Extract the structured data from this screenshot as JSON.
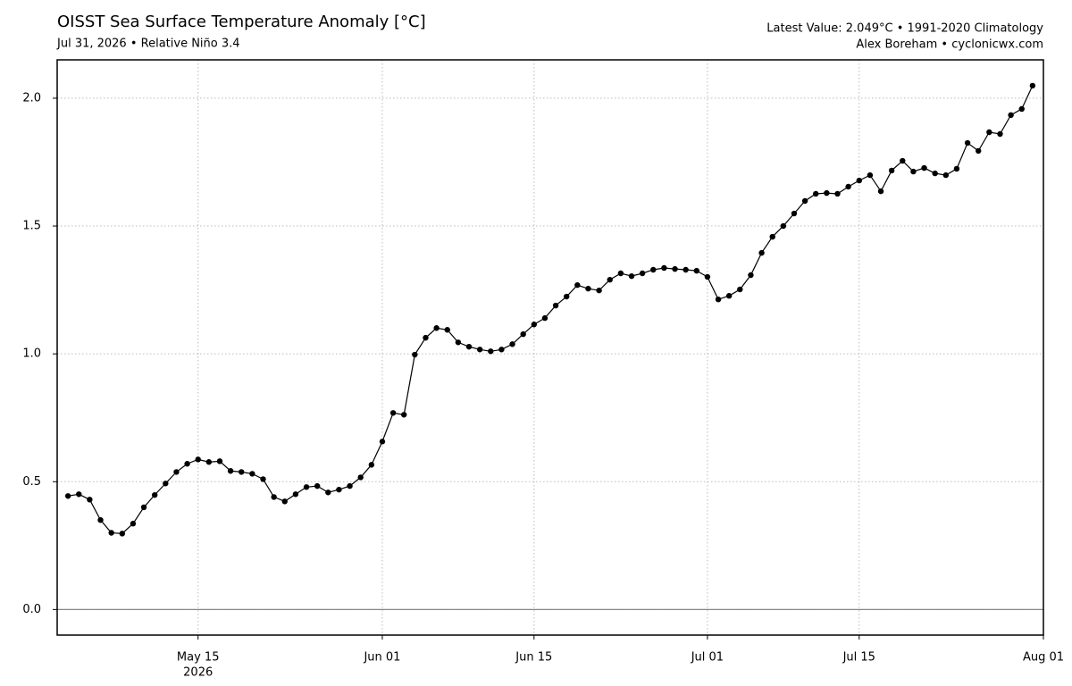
{
  "chart_data": {
    "type": "line",
    "title": "OISST Sea Surface Temperature Anomaly [°C]",
    "subtitle": "Jul 31, 2026 • Relative Niño 3.4",
    "annotations": [
      "Latest Value: 2.049°C • 1991-2020 Climatology",
      "Alex Boreham • cyclonicwx.com"
    ],
    "x": [
      "2026-05-03",
      "2026-05-04",
      "2026-05-05",
      "2026-05-06",
      "2026-05-07",
      "2026-05-08",
      "2026-05-09",
      "2026-05-10",
      "2026-05-11",
      "2026-05-12",
      "2026-05-13",
      "2026-05-14",
      "2026-05-15",
      "2026-05-16",
      "2026-05-17",
      "2026-05-18",
      "2026-05-19",
      "2026-05-20",
      "2026-05-21",
      "2026-05-22",
      "2026-05-23",
      "2026-05-24",
      "2026-05-25",
      "2026-05-26",
      "2026-05-27",
      "2026-05-28",
      "2026-05-29",
      "2026-05-30",
      "2026-05-31",
      "2026-06-01",
      "2026-06-02",
      "2026-06-03",
      "2026-06-04",
      "2026-06-05",
      "2026-06-06",
      "2026-06-07",
      "2026-06-08",
      "2026-06-09",
      "2026-06-10",
      "2026-06-11",
      "2026-06-12",
      "2026-06-13",
      "2026-06-14",
      "2026-06-15",
      "2026-06-16",
      "2026-06-17",
      "2026-06-18",
      "2026-06-19",
      "2026-06-20",
      "2026-06-21",
      "2026-06-22",
      "2026-06-23",
      "2026-06-24",
      "2026-06-25",
      "2026-06-26",
      "2026-06-27",
      "2026-06-28",
      "2026-06-29",
      "2026-06-30",
      "2026-07-01",
      "2026-07-02",
      "2026-07-03",
      "2026-07-04",
      "2026-07-05",
      "2026-07-06",
      "2026-07-07",
      "2026-07-08",
      "2026-07-09",
      "2026-07-10",
      "2026-07-11",
      "2026-07-12",
      "2026-07-13",
      "2026-07-14",
      "2026-07-15",
      "2026-07-16",
      "2026-07-17",
      "2026-07-18",
      "2026-07-19",
      "2026-07-20",
      "2026-07-21",
      "2026-07-22",
      "2026-07-23",
      "2026-07-24",
      "2026-07-25",
      "2026-07-26",
      "2026-07-27",
      "2026-07-28",
      "2026-07-29",
      "2026-07-30",
      "2026-07-31"
    ],
    "values": [
      0.444,
      0.451,
      0.43,
      0.35,
      0.3,
      0.297,
      0.336,
      0.4,
      0.448,
      0.493,
      0.538,
      0.57,
      0.587,
      0.577,
      0.58,
      0.542,
      0.538,
      0.531,
      0.51,
      0.44,
      0.423,
      0.451,
      0.479,
      0.483,
      0.458,
      0.469,
      0.483,
      0.517,
      0.566,
      0.657,
      0.769,
      0.762,
      0.997,
      1.063,
      1.101,
      1.094,
      1.045,
      1.028,
      1.017,
      1.01,
      1.017,
      1.038,
      1.077,
      1.115,
      1.14,
      1.189,
      1.224,
      1.269,
      1.255,
      1.248,
      1.29,
      1.315,
      1.304,
      1.315,
      1.329,
      1.336,
      1.332,
      1.329,
      1.325,
      1.301,
      1.213,
      1.227,
      1.252,
      1.308,
      1.395,
      1.458,
      1.5,
      1.549,
      1.598,
      1.626,
      1.629,
      1.626,
      1.654,
      1.678,
      1.699,
      1.636,
      1.717,
      1.755,
      1.713,
      1.727,
      1.706,
      1.699,
      1.724,
      1.825,
      1.794,
      1.867,
      1.86,
      1.934,
      1.958,
      2.049
    ],
    "color": "#000000",
    "xlim": [
      "2026-05-02",
      "2026-08-01"
    ],
    "xticks": [
      {
        "value": "2026-05-15",
        "label": "May 15"
      },
      {
        "value": "2026-06-01",
        "label": "Jun 01"
      },
      {
        "value": "2026-06-15",
        "label": "Jun 15"
      },
      {
        "value": "2026-07-01",
        "label": "Jul 01"
      },
      {
        "value": "2026-07-15",
        "label": "Jul 15"
      },
      {
        "value": "2026-08-01",
        "label": "Aug 01"
      }
    ],
    "x_year_label": "2026",
    "ylim": [
      -0.1,
      2.15
    ],
    "yticks": [
      {
        "value": 0,
        "label": "0.0"
      },
      0.5,
      {
        "value": 1,
        "label": "1.0"
      },
      1.5,
      {
        "value": 2,
        "label": "2.0"
      }
    ],
    "grid": true,
    "zero_line": true
  }
}
